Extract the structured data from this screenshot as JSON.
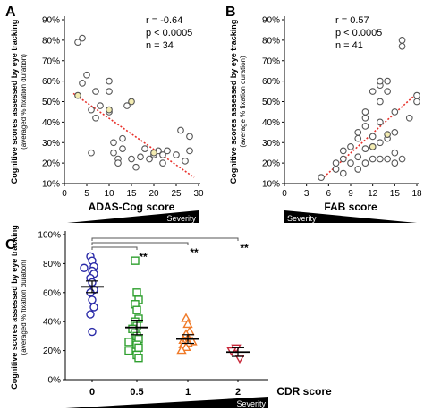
{
  "chart_data": [
    {
      "panel_label": "A",
      "type": "scatter",
      "xlabel": "ADAS-Cog score",
      "ylabel": "Cognitive scores assessed by eye tracking",
      "ylabel_sub": "(averaged % fixation duration)",
      "severity_label": "Severity",
      "xlim": [
        0,
        30
      ],
      "ylim": [
        10,
        90
      ],
      "x_ticks": [
        0,
        5,
        10,
        15,
        20,
        25,
        30
      ],
      "y_ticks": [
        "10%",
        "20%",
        "30%",
        "40%",
        "50%",
        "60%",
        "70%",
        "80%",
        "90%"
      ],
      "stats": [
        "r = -0.64",
        "p < 0.0005",
        "n = 34"
      ],
      "marker_color": "#555555",
      "highlight_color": "#f3ecb2",
      "trend_color": "#e8302a",
      "trend": {
        "x": [
          2,
          29
        ],
        "y": [
          54,
          13
        ]
      },
      "points": [
        [
          3,
          79
        ],
        [
          4,
          81
        ],
        [
          5,
          63
        ],
        [
          4,
          59
        ],
        [
          6,
          25
        ],
        [
          7,
          55
        ],
        [
          6,
          46
        ],
        [
          7,
          42
        ],
        [
          8,
          48
        ],
        [
          10,
          60
        ],
        [
          10,
          55
        ],
        [
          10,
          45
        ],
        [
          11,
          30
        ],
        [
          11,
          25
        ],
        [
          12,
          22
        ],
        [
          12,
          20
        ],
        [
          13,
          32
        ],
        [
          13,
          27
        ],
        [
          14,
          48
        ],
        [
          15,
          22
        ],
        [
          16,
          18
        ],
        [
          17,
          23
        ],
        [
          18,
          27
        ],
        [
          19,
          22
        ],
        [
          20,
          24
        ],
        [
          21,
          26
        ],
        [
          22,
          24
        ],
        [
          22,
          20
        ],
        [
          23,
          26
        ],
        [
          25,
          24
        ],
        [
          26,
          36
        ],
        [
          27,
          21
        ],
        [
          28,
          26
        ],
        [
          28,
          33
        ]
      ],
      "highlighted": [
        [
          3,
          53
        ],
        [
          10,
          46
        ],
        [
          15,
          50
        ],
        [
          20,
          25
        ]
      ]
    },
    {
      "panel_label": "B",
      "type": "scatter",
      "xlabel": "FAB score",
      "ylabel": "Cognitive scores assessed by eye tracking",
      "ylabel_sub": "(average % fixation duration)",
      "severity_label": "Severity",
      "xlim": [
        0,
        18
      ],
      "ylim": [
        10,
        90
      ],
      "x_ticks": [
        0,
        3,
        6,
        9,
        12,
        15,
        18
      ],
      "y_ticks": [
        "10%",
        "20%",
        "30%",
        "40%",
        "50%",
        "60%",
        "70%",
        "80%",
        "90%"
      ],
      "stats": [
        "r = 0.57",
        "p < 0.0005",
        "n = 41"
      ],
      "marker_color": "#555555",
      "highlight_color": "#f3ecb2",
      "trend_color": "#e8302a",
      "trend": {
        "x": [
          5,
          18
        ],
        "y": [
          12,
          54
        ]
      },
      "points": [
        [
          5,
          13
        ],
        [
          7,
          17
        ],
        [
          7,
          20
        ],
        [
          8,
          15
        ],
        [
          8,
          22
        ],
        [
          8,
          26
        ],
        [
          9,
          20
        ],
        [
          9,
          28
        ],
        [
          10,
          17
        ],
        [
          10,
          23
        ],
        [
          10,
          32
        ],
        [
          10,
          35
        ],
        [
          11,
          20
        ],
        [
          11,
          27
        ],
        [
          11,
          38
        ],
        [
          11,
          45
        ],
        [
          11,
          42
        ],
        [
          12,
          22
        ],
        [
          12,
          28
        ],
        [
          12,
          33
        ],
        [
          12,
          55
        ],
        [
          13,
          22
        ],
        [
          13,
          30
        ],
        [
          13,
          40
        ],
        [
          13,
          50
        ],
        [
          13,
          58
        ],
        [
          13,
          60
        ],
        [
          14,
          22
        ],
        [
          14,
          32
        ],
        [
          14,
          55
        ],
        [
          14,
          60
        ],
        [
          15,
          20
        ],
        [
          15,
          25
        ],
        [
          15,
          45
        ],
        [
          15,
          35
        ],
        [
          16,
          80
        ],
        [
          16,
          77
        ],
        [
          16,
          22
        ],
        [
          17,
          42
        ],
        [
          18,
          50
        ],
        [
          18,
          53
        ]
      ],
      "highlighted": [
        [
          12,
          28
        ],
        [
          14,
          34
        ]
      ]
    },
    {
      "panel_label": "C",
      "type": "scatter",
      "xlabel": "CDR score",
      "ylabel": "Cognitive scores assessed by eye tracking",
      "ylabel_sub": "(averaged % fixation duration)",
      "severity_label": "Severity",
      "ylim": [
        0,
        100
      ],
      "y_ticks": [
        "0%",
        "20%",
        "40%",
        "60%",
        "80%",
        "100%"
      ],
      "categories": [
        "0",
        "0.5",
        "1",
        "2"
      ],
      "significance": [
        "**",
        "**",
        "**"
      ],
      "groups": [
        {
          "category": "0",
          "marker": "circle",
          "color": "#2a2aa8",
          "mean": 64,
          "sem": 4,
          "values": [
            85,
            82,
            78,
            77,
            75,
            73,
            70,
            67,
            62,
            60,
            55,
            50,
            45,
            33
          ]
        },
        {
          "category": "0.5",
          "marker": "square",
          "color": "#2fa02f",
          "mean": 36,
          "sem": 5,
          "values": [
            82,
            60,
            55,
            52,
            48,
            42,
            40,
            37,
            35,
            32,
            30,
            28,
            26,
            24,
            22,
            20,
            17,
            15
          ]
        },
        {
          "category": "1",
          "marker": "triangle",
          "color": "#f07a28",
          "mean": 28,
          "sem": 3,
          "values": [
            42,
            38,
            33,
            31,
            28,
            27,
            26,
            25,
            24,
            22,
            20
          ]
        },
        {
          "category": "2",
          "marker": "inverted-triangle",
          "color": "#c8283a",
          "mean": 19,
          "sem": 3,
          "values": [
            22,
            20,
            15
          ]
        }
      ]
    }
  ]
}
